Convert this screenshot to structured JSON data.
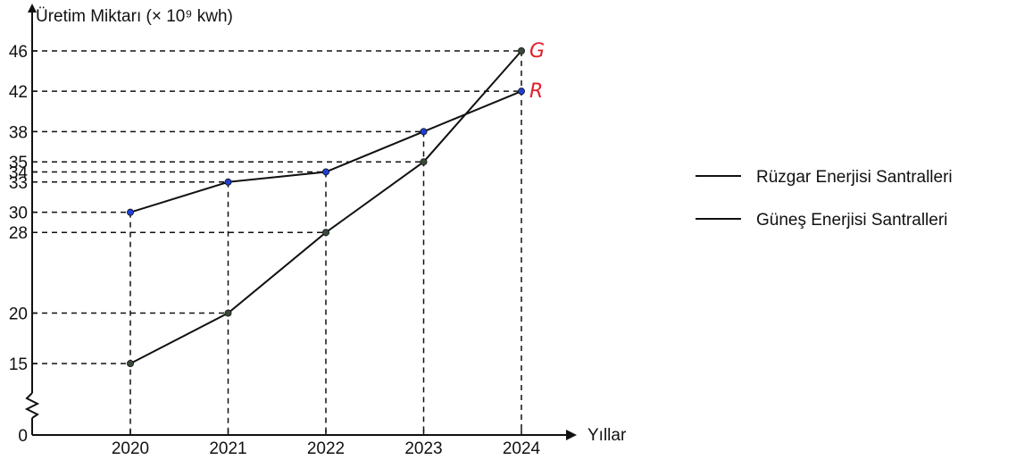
{
  "chart_data": {
    "type": "line",
    "ylabel": "Üretim Miktarı (× 10⁹ kwh)",
    "xlabel": "Yıllar",
    "categories": [
      "2020",
      "2021",
      "2022",
      "2023",
      "2024"
    ],
    "y_ticks": [
      0,
      15,
      20,
      28,
      30,
      33,
      34,
      35,
      38,
      42,
      46
    ],
    "y_axis_break": true,
    "grid": "dashed guide lines to each data point",
    "legend_position": "right",
    "series": [
      {
        "name": "Rüzgar Enerjisi Santralleri",
        "end_label": "R",
        "values": [
          30,
          33,
          34,
          38,
          42
        ],
        "color": "#1f3fd6",
        "line_color": "#111111"
      },
      {
        "name": "Güneş Enerjisi Santralleri",
        "end_label": "G",
        "values": [
          15,
          20,
          28,
          35,
          46
        ],
        "color": "#3a4a3a",
        "line_color": "#111111"
      }
    ],
    "annotation_color": "#e0202a"
  }
}
